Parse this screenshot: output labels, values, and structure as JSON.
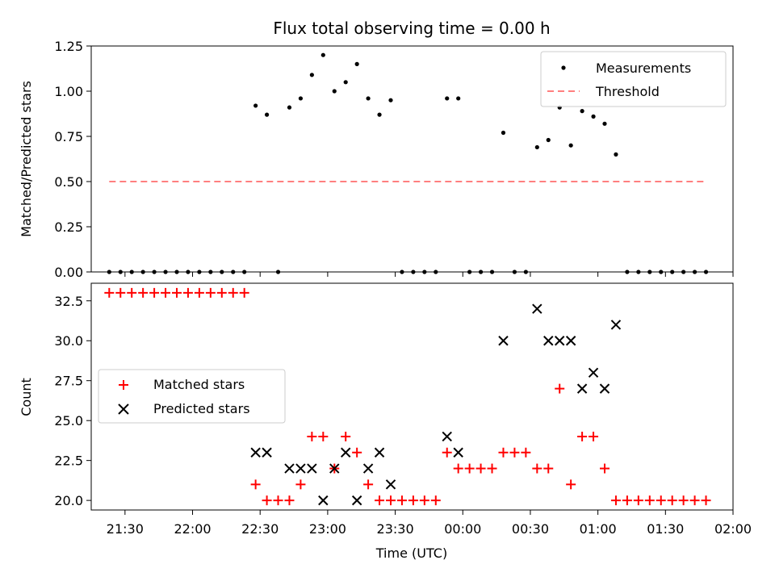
{
  "chart_data": [
    {
      "type": "scatter",
      "title": "Flux total observing time = 0.00 h",
      "xlabel": "",
      "ylabel": "Matched/Predicted stars",
      "ylim": [
        0,
        1.25
      ],
      "yticks": [
        "0.00",
        "0.25",
        "0.50",
        "0.75",
        "1.00",
        "1.25"
      ],
      "ytick_values": [
        0,
        0.25,
        0.5,
        0.75,
        1.0,
        1.25
      ],
      "legend_position": "top-right",
      "legend": [
        "Measurements",
        "Threshold"
      ],
      "colors": {
        "measurements": "#000000",
        "threshold": "#ff7f7f"
      },
      "series": [
        {
          "name": "Measurements",
          "x": [
            "21:23",
            "21:28",
            "21:33",
            "21:38",
            "21:43",
            "21:48",
            "21:53",
            "21:58",
            "22:03",
            "22:08",
            "22:13",
            "22:18",
            "22:23",
            "22:28",
            "22:33",
            "22:38",
            "22:43",
            "22:48",
            "22:53",
            "22:58",
            "23:03",
            "23:08",
            "23:13",
            "23:18",
            "23:23",
            "23:28",
            "23:33",
            "23:38",
            "23:43",
            "23:48",
            "23:53",
            "23:58",
            "00:03",
            "00:08",
            "00:13",
            "00:18",
            "00:23",
            "00:28",
            "00:33",
            "00:38",
            "00:43",
            "00:48",
            "00:53",
            "00:58",
            "01:03",
            "01:08",
            "01:13",
            "01:18",
            "01:23",
            "01:28",
            "01:33",
            "01:38",
            "01:43",
            "01:48"
          ],
          "y": [
            0,
            0,
            0,
            0,
            0,
            0,
            0,
            0,
            0,
            0,
            0,
            0,
            0,
            0.92,
            0.87,
            0,
            0.91,
            0.96,
            1.09,
            1.2,
            1.0,
            1.05,
            1.15,
            0.96,
            0.87,
            0.95,
            0,
            0,
            0,
            0,
            0.96,
            0.96,
            0,
            0,
            0,
            0.77,
            0,
            0,
            0.69,
            0.73,
            0.91,
            0.7,
            0.89,
            0.86,
            0.82,
            0.65,
            0,
            0,
            0,
            0,
            0,
            0,
            0,
            0
          ]
        },
        {
          "name": "Threshold",
          "x": [
            "21:23",
            "01:48"
          ],
          "y": [
            0.5,
            0.5
          ]
        }
      ]
    },
    {
      "type": "scatter",
      "title": "",
      "xlabel": "Time (UTC)",
      "ylabel": "Count",
      "ylim": [
        19.4,
        33.6
      ],
      "xlim": [
        "21:15",
        "02:00"
      ],
      "xticks": [
        "21:30",
        "22:00",
        "22:30",
        "23:00",
        "23:30",
        "00:00",
        "00:30",
        "01:00",
        "01:30",
        "02:00"
      ],
      "yticks": [
        "20.0",
        "22.5",
        "25.0",
        "27.5",
        "30.0",
        "32.5"
      ],
      "ytick_values": [
        20,
        22.5,
        25,
        27.5,
        30,
        32.5
      ],
      "legend_position": "center-left",
      "legend": [
        "Matched stars",
        "Predicted stars"
      ],
      "colors": {
        "matched": "#ff0000",
        "predicted": "#000000"
      },
      "series": [
        {
          "name": "Matched stars",
          "x": [
            "21:23",
            "21:28",
            "21:33",
            "21:38",
            "21:43",
            "21:48",
            "21:53",
            "21:58",
            "22:03",
            "22:08",
            "22:13",
            "22:18",
            "22:23",
            "22:28",
            "22:33",
            "22:38",
            "22:43",
            "22:48",
            "22:53",
            "22:58",
            "23:03",
            "23:08",
            "23:13",
            "23:18",
            "23:23",
            "23:28",
            "23:33",
            "23:38",
            "23:43",
            "23:48",
            "23:53",
            "23:58",
            "00:03",
            "00:08",
            "00:13",
            "00:18",
            "00:23",
            "00:28",
            "00:33",
            "00:38",
            "00:43",
            "00:48",
            "00:53",
            "00:58",
            "01:03",
            "01:08",
            "01:13",
            "01:18",
            "01:23",
            "01:28",
            "01:33",
            "01:38",
            "01:43",
            "01:48"
          ],
          "y": [
            33,
            33,
            33,
            33,
            33,
            33,
            33,
            33,
            33,
            33,
            33,
            33,
            33,
            21,
            20,
            20,
            20,
            21,
            24,
            24,
            22,
            24,
            23,
            21,
            20,
            20,
            20,
            20,
            20,
            20,
            23,
            22,
            22,
            22,
            22,
            23,
            23,
            23,
            22,
            22,
            27,
            21,
            24,
            24,
            22,
            20,
            20,
            20,
            20,
            20,
            20,
            20,
            20,
            20
          ]
        },
        {
          "name": "Predicted stars",
          "x": [
            "22:28",
            "22:33",
            "22:43",
            "22:48",
            "22:53",
            "22:58",
            "23:03",
            "23:08",
            "23:13",
            "23:18",
            "23:23",
            "23:28",
            "23:53",
            "23:58",
            "00:18",
            "00:33",
            "00:38",
            "00:43",
            "00:48",
            "00:53",
            "00:58",
            "01:03",
            "01:08"
          ],
          "y": [
            23,
            23,
            22,
            22,
            22,
            20,
            22,
            23,
            20,
            22,
            23,
            21,
            24,
            23,
            30,
            32,
            30,
            30,
            30,
            27,
            28,
            27,
            31
          ]
        }
      ]
    }
  ]
}
